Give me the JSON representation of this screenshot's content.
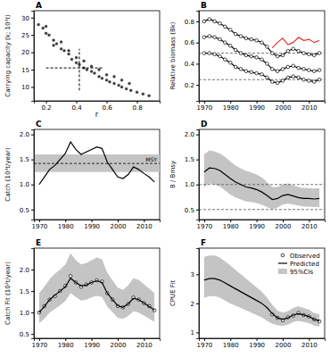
{
  "chart_data": [
    {
      "panel": "A",
      "type": "scatter",
      "xlabel": "r",
      "ylabel": "Carrying capacity (k; 10³t)",
      "x": [
        0.15,
        0.18,
        0.2,
        0.22,
        0.25,
        0.27,
        0.3,
        0.32,
        0.35,
        0.37,
        0.4,
        0.42,
        0.45,
        0.47,
        0.5,
        0.52,
        0.55,
        0.57,
        0.6,
        0.62,
        0.65,
        0.68,
        0.7,
        0.73,
        0.76,
        0.8,
        0.84,
        0.88,
        0.2,
        0.3,
        0.4,
        0.5,
        0.6,
        0.7,
        0.25,
        0.35,
        0.45,
        0.55,
        0.65,
        0.75
      ],
      "series": [
        {
          "color": "#3a3a3a",
          "marker": "circle",
          "values": [
            28,
            27,
            25.5,
            25,
            23.5,
            22.5,
            21,
            20.5,
            19.5,
            18,
            17,
            16.5,
            15.5,
            15,
            14.5,
            14,
            13,
            12.5,
            12,
            11.5,
            11,
            10.5,
            10,
            9.5,
            9,
            8.5,
            8,
            7.5,
            27.5,
            23,
            18.5,
            16,
            13.5,
            12,
            22,
            20.5,
            17.5,
            15,
            13,
            11
          ]
        }
      ],
      "estimate": {
        "x": 0.42,
        "y": 15.5,
        "x_low": 0.2,
        "x_high": 0.58,
        "y_low": 9,
        "y_high": 21
      },
      "xlim": [
        0.12,
        0.95
      ],
      "xticks": [
        0.2,
        0.4,
        0.6,
        0.8
      ],
      "ylim": [
        6,
        32
      ],
      "yticks": [
        10,
        15,
        20,
        25,
        30
      ]
    },
    {
      "panel": "B",
      "type": "line",
      "ylabel": "Relative biomass (Bk)",
      "x": [
        1970,
        1972,
        1974,
        1976,
        1978,
        1980,
        1982,
        1984,
        1986,
        1988,
        1990,
        1992,
        1994,
        1996,
        1998,
        2000,
        2002,
        2004,
        2006,
        2008,
        2010,
        2012,
        2014
      ],
      "series": [
        {
          "color": "#000000",
          "marker": "open_circle",
          "line_style": "solid",
          "values": [
            0.8,
            0.82,
            0.8,
            0.78,
            0.75,
            0.72,
            0.68,
            0.66,
            0.64,
            0.63,
            0.62,
            0.6,
            0.56,
            0.5,
            0.47,
            0.48,
            0.52,
            0.54,
            0.52,
            0.5,
            0.49,
            0.48,
            0.5
          ]
        },
        {
          "color": "#000000",
          "marker": "open_circle",
          "line_style": "solid",
          "values": [
            0.65,
            0.66,
            0.65,
            0.63,
            0.6,
            0.57,
            0.53,
            0.5,
            0.48,
            0.47,
            0.46,
            0.44,
            0.4,
            0.35,
            0.33,
            0.35,
            0.37,
            0.38,
            0.36,
            0.35,
            0.34,
            0.33,
            0.34
          ]
        },
        {
          "color": "#000000",
          "marker": "open_circle",
          "line_style": "solid",
          "values": [
            0.5,
            0.5,
            0.49,
            0.47,
            0.44,
            0.41,
            0.37,
            0.35,
            0.33,
            0.32,
            0.31,
            0.3,
            0.27,
            0.23,
            0.22,
            0.24,
            0.27,
            0.28,
            0.27,
            0.25,
            0.24,
            0.23,
            0.25
          ]
        },
        {
          "color": "#e0302a",
          "line_style": "solid",
          "values": [
            null,
            null,
            null,
            null,
            null,
            null,
            null,
            null,
            null,
            null,
            null,
            null,
            null,
            0.55,
            0.6,
            0.64,
            0.58,
            0.6,
            0.65,
            0.62,
            0.63,
            0.6,
            0.62
          ]
        }
      ],
      "reference_lines": [
        0.5,
        0.25
      ],
      "xlim": [
        1968,
        2016
      ],
      "xticks": [
        1970,
        1980,
        1990,
        2000,
        2010
      ],
      "ylim": [
        0.05,
        0.9
      ],
      "yticks": [
        0.2,
        0.4,
        0.6,
        0.8
      ]
    },
    {
      "panel": "C",
      "type": "line",
      "ylabel": "Catch (10³t/year)",
      "x": [
        1970,
        1972,
        1974,
        1976,
        1978,
        1980,
        1982,
        1984,
        1986,
        1988,
        1990,
        1992,
        1994,
        1996,
        1998,
        2000,
        2002,
        2004,
        2006,
        2008,
        2010,
        2012,
        2014
      ],
      "series": [
        {
          "color": "#000000",
          "line_style": "solid",
          "values": [
            1.0,
            1.15,
            1.3,
            1.38,
            1.5,
            1.62,
            1.85,
            1.7,
            1.6,
            1.65,
            1.7,
            1.75,
            1.72,
            1.45,
            1.3,
            1.15,
            1.12,
            1.2,
            1.35,
            1.3,
            1.22,
            1.15,
            1.05
          ]
        }
      ],
      "msy": {
        "label": "MSY",
        "value": 1.42,
        "low": 1.25,
        "high": 1.6
      },
      "xlim": [
        1968,
        2016
      ],
      "xticks": [
        1970,
        1980,
        1990,
        2000,
        2010
      ],
      "ylim": [
        0.3,
        2.1
      ],
      "yticks": [
        0.5,
        {
          "value": 1,
          "label": "1.0"
        },
        1.5,
        {
          "value": 2,
          "label": "2.0"
        }
      ]
    },
    {
      "panel": "D",
      "type": "line",
      "ylabel": "B / Bmsy",
      "x": [
        1970,
        1972,
        1974,
        1976,
        1978,
        1980,
        1982,
        1984,
        1986,
        1988,
        1990,
        1992,
        1994,
        1996,
        1998,
        2000,
        2002,
        2004,
        2006,
        2008,
        2010,
        2012,
        2014
      ],
      "series": [
        {
          "color": "#000000",
          "line_style": "solid",
          "values": [
            1.25,
            1.33,
            1.32,
            1.28,
            1.2,
            1.12,
            1.05,
            1.0,
            0.95,
            0.93,
            0.9,
            0.85,
            0.78,
            0.7,
            0.72,
            0.78,
            0.8,
            0.77,
            0.74,
            0.72,
            0.72,
            0.71,
            0.72
          ]
        }
      ],
      "band": {
        "color": "#c4c4c4",
        "lower": [
          0.95,
          1.02,
          1.0,
          0.96,
          0.88,
          0.8,
          0.74,
          0.7,
          0.66,
          0.65,
          0.63,
          0.6,
          0.55,
          0.5,
          0.54,
          0.6,
          0.62,
          0.6,
          0.58,
          0.56,
          0.56,
          0.55,
          0.55
        ],
        "upper": [
          1.6,
          1.68,
          1.66,
          1.62,
          1.55,
          1.46,
          1.38,
          1.32,
          1.27,
          1.24,
          1.2,
          1.14,
          1.05,
          0.95,
          0.95,
          1.0,
          1.02,
          0.98,
          0.95,
          0.93,
          0.93,
          0.92,
          0.93
        ]
      },
      "reference_lines": [
        1,
        0.5
      ],
      "xlim": [
        1968,
        2016
      ],
      "xticks": [
        1970,
        1980,
        1990,
        2000,
        2010
      ],
      "ylim": [
        0.3,
        2.1
      ],
      "yticks": [
        0.5,
        {
          "value": 1,
          "label": "1.0"
        },
        1.5,
        {
          "value": 2,
          "label": "2.0"
        }
      ]
    },
    {
      "panel": "E",
      "type": "line",
      "ylabel": "Catch Fit (10³t/year)",
      "x": [
        1970,
        1972,
        1974,
        1976,
        1978,
        1980,
        1982,
        1984,
        1986,
        1988,
        1990,
        1992,
        1994,
        1996,
        1998,
        2000,
        2002,
        2004,
        2006,
        2008,
        2010,
        2012,
        2014
      ],
      "series": [
        {
          "color": "#000000",
          "marker": "open_circle",
          "line_style": "none",
          "values": [
            1.0,
            1.15,
            1.3,
            1.38,
            1.5,
            1.62,
            1.85,
            1.7,
            1.6,
            1.65,
            1.7,
            1.75,
            1.72,
            1.45,
            1.3,
            1.15,
            1.12,
            1.2,
            1.35,
            1.3,
            1.22,
            1.15,
            1.05
          ]
        },
        {
          "color": "#000000",
          "line_style": "solid",
          "values": [
            1.0,
            1.14,
            1.3,
            1.4,
            1.5,
            1.6,
            1.8,
            1.7,
            1.62,
            1.64,
            1.7,
            1.74,
            1.7,
            1.45,
            1.3,
            1.16,
            1.12,
            1.2,
            1.33,
            1.3,
            1.22,
            1.14,
            1.06
          ]
        }
      ],
      "band": {
        "color": "#c4c4c4",
        "lower": [
          0.75,
          0.86,
          1.0,
          1.08,
          1.17,
          1.27,
          1.45,
          1.36,
          1.28,
          1.3,
          1.35,
          1.39,
          1.36,
          1.14,
          1.01,
          0.88,
          0.85,
          0.92,
          1.03,
          1.0,
          0.93,
          0.86,
          0.78
        ],
        "upper": [
          1.45,
          1.6,
          1.78,
          1.9,
          2.0,
          2.12,
          2.38,
          2.22,
          2.12,
          2.15,
          2.22,
          2.28,
          2.24,
          1.93,
          1.75,
          1.58,
          1.53,
          1.63,
          1.8,
          1.76,
          1.66,
          1.56,
          1.45
        ]
      },
      "xlim": [
        1968,
        2016
      ],
      "xticks": [
        1970,
        1980,
        1990,
        2000,
        2010
      ],
      "ylim": [
        0.4,
        2.5
      ],
      "yticks": [
        0.5,
        {
          "value": 1,
          "label": "1.0"
        },
        1.5,
        {
          "value": 2,
          "label": "2.0"
        }
      ]
    },
    {
      "panel": "F",
      "type": "line",
      "ylabel": "CPUE Fit",
      "legend": "upper right",
      "x": [
        1970,
        1972,
        1974,
        1976,
        1978,
        1980,
        1982,
        1984,
        1986,
        1988,
        1990,
        1992,
        1994,
        1996,
        1998,
        2000,
        2002,
        2004,
        2006,
        2008,
        2010,
        2012,
        2014
      ],
      "series": [
        {
          "name": "Observed",
          "color": "#000000",
          "marker": "open_circle",
          "line_style": "none",
          "values": [
            null,
            null,
            null,
            null,
            null,
            null,
            null,
            null,
            null,
            null,
            null,
            null,
            null,
            1.62,
            1.5,
            1.42,
            1.52,
            1.58,
            1.67,
            1.6,
            1.55,
            1.45,
            1.38
          ]
        },
        {
          "name": "Predicted",
          "color": "#000000",
          "line_style": "solid",
          "values": [
            2.8,
            2.85,
            2.85,
            2.8,
            2.7,
            2.6,
            2.5,
            2.4,
            2.3,
            2.2,
            2.1,
            2.0,
            1.85,
            1.65,
            1.5,
            1.45,
            1.5,
            1.6,
            1.65,
            1.6,
            1.55,
            1.45,
            1.4
          ]
        }
      ],
      "band": {
        "name": "95%CIs",
        "color": "#c4c4c4",
        "lower": [
          2.2,
          2.25,
          2.25,
          2.2,
          2.1,
          2.0,
          1.92,
          1.84,
          1.76,
          1.68,
          1.6,
          1.52,
          1.4,
          1.3,
          1.25,
          1.22,
          1.27,
          1.36,
          1.4,
          1.36,
          1.32,
          1.24,
          1.2
        ],
        "upper": [
          3.6,
          3.65,
          3.65,
          3.58,
          3.45,
          3.3,
          3.15,
          3.0,
          2.85,
          2.7,
          2.55,
          2.4,
          2.2,
          1.95,
          1.75,
          1.68,
          1.73,
          1.84,
          1.9,
          1.84,
          1.78,
          1.67,
          1.62
        ]
      },
      "xlim": [
        1968,
        2016
      ],
      "xticks": [
        1970,
        1980,
        1990,
        2000,
        2010
      ],
      "ylim": [
        0.8,
        3.9
      ],
      "yticks": [
        1,
        2,
        3
      ]
    }
  ]
}
